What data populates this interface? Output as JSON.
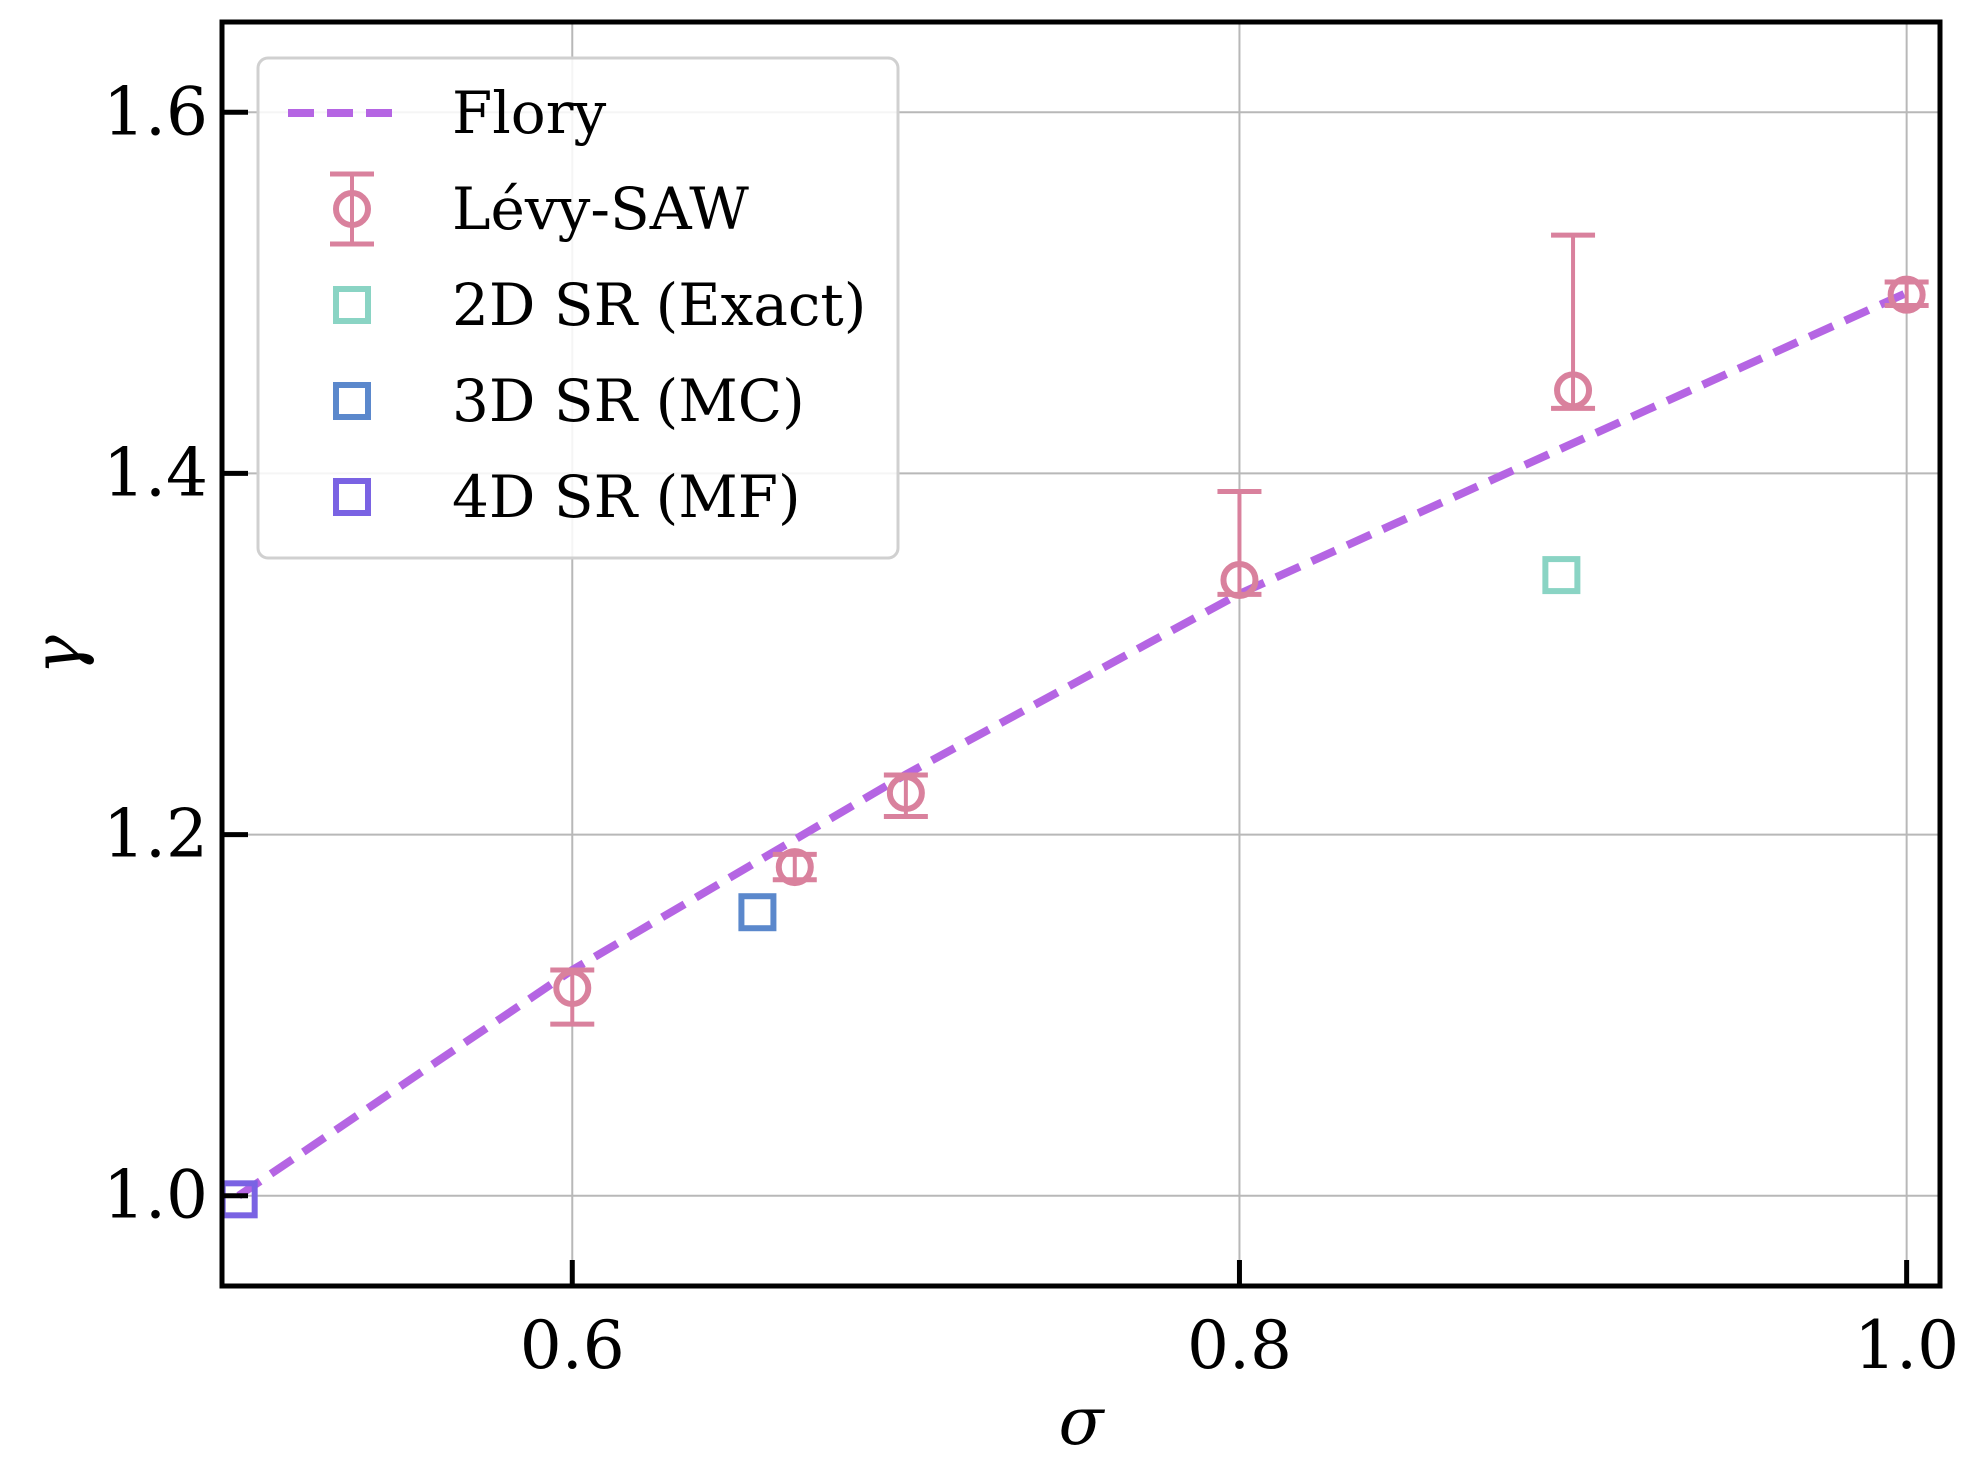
{
  "chart_data": {
    "type": "scatter",
    "xlabel": "σ",
    "ylabel": "γ",
    "xlim": [
      0.495,
      1.01
    ],
    "ylim": [
      0.95,
      1.65
    ],
    "xticks": [
      "0.6",
      "0.8",
      "1.0"
    ],
    "xtick_values": [
      0.6,
      0.8,
      1.0
    ],
    "yticks": [
      "1.0",
      "1.2",
      "1.4",
      "1.6"
    ],
    "ytick_values": [
      1.0,
      1.2,
      1.4,
      1.6
    ],
    "grid": true,
    "legend_position": "top-left",
    "series": [
      {
        "name": "Flory",
        "kind": "dashed-line",
        "color": "#b565e3",
        "x": [
          0.5,
          0.6,
          0.7,
          0.8,
          0.9,
          1.0
        ],
        "y": [
          1.0,
          1.125,
          1.2333,
          1.3333,
          1.4167,
          1.5
        ]
      },
      {
        "name": "Lévy-SAW",
        "kind": "errorbar-circle",
        "color": "#d9819d",
        "points": [
          {
            "x": 0.6,
            "y": 1.115,
            "lower": 1.095,
            "upper": 1.125
          },
          {
            "x": 0.6667,
            "y": 1.182,
            "lower": 1.175,
            "upper": 1.189
          },
          {
            "x": 0.7,
            "y": 1.223,
            "lower": 1.21,
            "upper": 1.233
          },
          {
            "x": 0.8,
            "y": 1.341,
            "lower": 1.333,
            "upper": 1.39
          },
          {
            "x": 0.9,
            "y": 1.446,
            "lower": 1.436,
            "upper": 1.532
          },
          {
            "x": 1.0,
            "y": 1.499,
            "lower": 1.493,
            "upper": 1.506
          }
        ]
      },
      {
        "name": "2D SR (Exact)",
        "kind": "square",
        "color": "#8ad4c4",
        "points": [
          {
            "x": 0.8965,
            "y": 1.3437
          }
        ]
      },
      {
        "name": "3D SR (MC)",
        "kind": "square",
        "color": "#5b88cc",
        "points": [
          {
            "x": 0.6555,
            "y": 1.157
          }
        ]
      },
      {
        "name": "4D SR (MF)",
        "kind": "square",
        "color": "#7a63e3",
        "points": [
          {
            "x": 0.5,
            "y": 0.998
          }
        ]
      }
    ]
  }
}
